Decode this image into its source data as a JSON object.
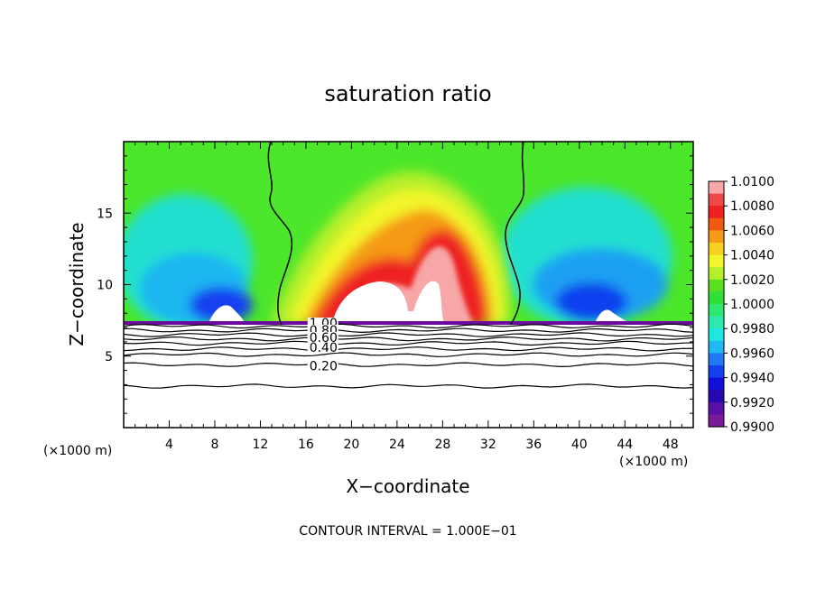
{
  "chart_data": {
    "type": "heatmap",
    "title": "saturation ratio",
    "xlabel": "X−coordinate",
    "ylabel": "Z−coordinate",
    "x_unit_left": "(×1000 m)",
    "x_unit_right": "(×1000 m)",
    "footer": "CONTOUR INTERVAL = 1.000E−01",
    "xlim": [
      0,
      50
    ],
    "ylim": [
      0,
      20
    ],
    "x_ticks": [
      4,
      8,
      12,
      16,
      20,
      24,
      28,
      32,
      36,
      40,
      44,
      48
    ],
    "x_tick_labels": [
      "4",
      "8",
      "12",
      "16",
      "20",
      "24",
      "28",
      "32",
      "36",
      "40",
      "44",
      "48"
    ],
    "y_ticks": [
      5,
      10,
      15
    ],
    "y_tick_labels": [
      "5",
      "10",
      "15"
    ],
    "colorbar": {
      "min": 0.99,
      "max": 1.01,
      "labels": [
        "1.0100",
        "1.0080",
        "1.0060",
        "1.0040",
        "1.0020",
        "1.0000",
        "0.9980",
        "0.9960",
        "0.9940",
        "0.9920",
        "0.9900"
      ],
      "colors": [
        "#f7a7a7",
        "#ee4848",
        "#ee2020",
        "#f05a10",
        "#f59a18",
        "#f8d020",
        "#f2f62c",
        "#b5ef2c",
        "#58e020",
        "#2ee038",
        "#2ee86f",
        "#2ee8b0",
        "#1fe6e0",
        "#1fb8f2",
        "#1f7af4",
        "#1440f0",
        "#1010d8",
        "#2808b0",
        "#5a10a8",
        "#7a1a9a"
      ]
    },
    "contour_labels": [
      {
        "x": 16.3,
        "z": 7.0,
        "text": "1.00"
      },
      {
        "x": 16.3,
        "z": 6.5,
        "text": "0.80"
      },
      {
        "x": 16.3,
        "z": 6.0,
        "text": "0.60"
      },
      {
        "x": 16.3,
        "z": 5.3,
        "text": "0.40"
      },
      {
        "x": 16.3,
        "z": 4.0,
        "text": "0.20"
      }
    ]
  }
}
